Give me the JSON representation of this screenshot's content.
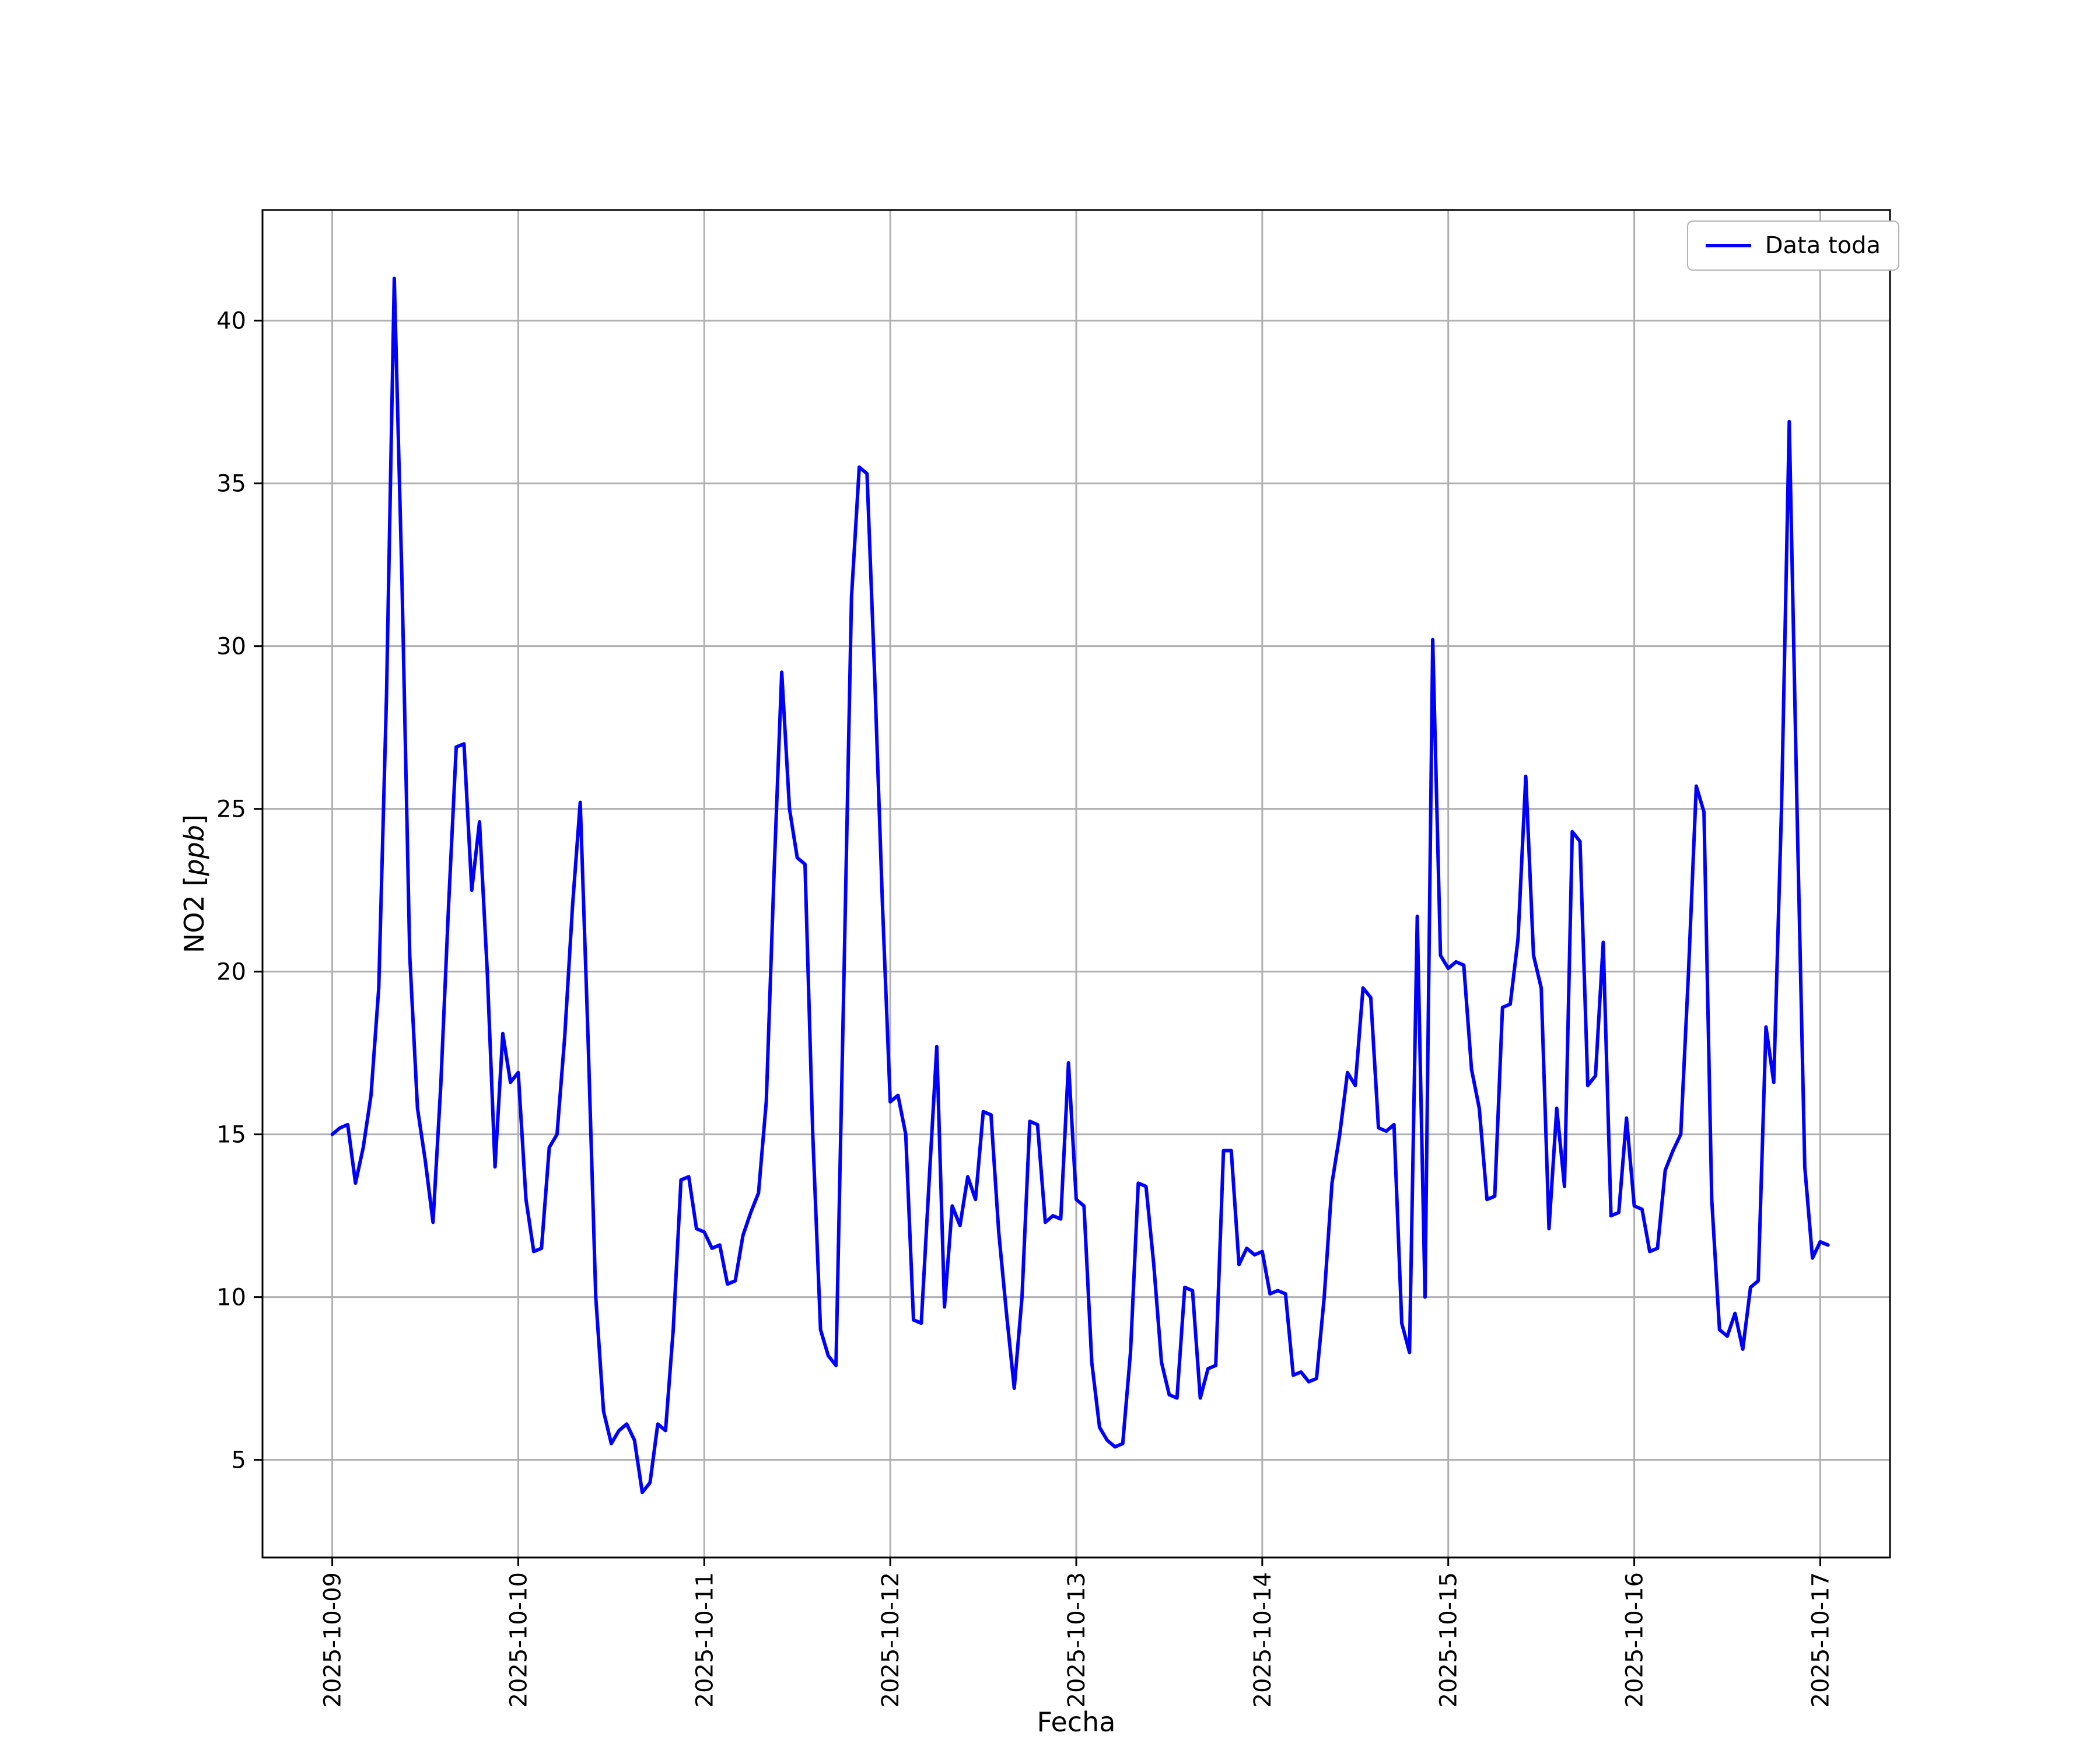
{
  "chart_data": {
    "type": "line",
    "title": "",
    "xlabel": "Fecha",
    "ylabel": "NO2 [ppb]",
    "ylabel_parts": {
      "pre": "NO2 [",
      "italic": "ppb",
      "post": "]"
    },
    "grid": true,
    "legend": {
      "position": "upper right"
    },
    "x_tick_labels": [
      "2025-10-09",
      "2025-10-10",
      "2025-10-11",
      "2025-10-12",
      "2025-10-13",
      "2025-10-14",
      "2025-10-15",
      "2025-10-16",
      "2025-10-17"
    ],
    "x_tick_hours": [
      0,
      24,
      48,
      72,
      96,
      120,
      144,
      168,
      192
    ],
    "x_tick_rotation_deg": 90,
    "xlim_hours": [
      -9,
      201
    ],
    "y_ticks": [
      5,
      10,
      15,
      20,
      25,
      30,
      35,
      40
    ],
    "ylim": [
      2.0,
      43.4
    ],
    "x_unit": "hours since 2025-10-09 00:00",
    "series": [
      {
        "name": "Data toda",
        "color": "#0000ff",
        "x_start_hour": 0,
        "x_step_hours": 1,
        "values": [
          15.0,
          15.2,
          15.3,
          13.5,
          14.6,
          16.2,
          19.5,
          28.5,
          41.3,
          32.0,
          20.5,
          15.8,
          14.2,
          12.3,
          16.5,
          22.0,
          26.9,
          27.0,
          22.5,
          24.6,
          20.0,
          14.0,
          18.1,
          16.6,
          16.9,
          13.0,
          11.4,
          11.5,
          14.6,
          15.0,
          18.0,
          22.0,
          25.2,
          18.0,
          10.0,
          6.5,
          5.5,
          5.9,
          6.1,
          5.6,
          4.0,
          4.3,
          6.1,
          5.9,
          9.0,
          13.6,
          13.7,
          12.1,
          12.0,
          11.5,
          11.6,
          10.4,
          10.5,
          11.9,
          12.6,
          13.2,
          16.0,
          23.0,
          29.2,
          25.0,
          23.5,
          23.3,
          15.0,
          9.0,
          8.2,
          7.9,
          19.5,
          31.5,
          35.5,
          35.3,
          29.0,
          22.0,
          16.0,
          16.2,
          15.0,
          9.3,
          9.2,
          13.5,
          17.7,
          9.7,
          12.8,
          12.2,
          13.7,
          13.0,
          15.7,
          15.6,
          12.0,
          9.5,
          7.2,
          10.0,
          15.4,
          15.3,
          12.3,
          12.5,
          12.4,
          17.2,
          13.0,
          12.8,
          8.0,
          6.0,
          5.6,
          5.4,
          5.5,
          8.3,
          13.5,
          13.4,
          11.0,
          8.0,
          7.0,
          6.9,
          10.3,
          10.2,
          6.9,
          7.8,
          7.9,
          14.5,
          14.5,
          11.0,
          11.5,
          11.3,
          11.4,
          10.1,
          10.2,
          10.1,
          7.6,
          7.7,
          7.4,
          7.5,
          10.0,
          13.5,
          15.0,
          16.9,
          16.5,
          19.5,
          19.2,
          15.2,
          15.1,
          15.3,
          9.2,
          8.3,
          21.7,
          10.0,
          30.2,
          20.5,
          20.1,
          20.3,
          20.2,
          17.0,
          15.8,
          13.0,
          13.1,
          18.9,
          19.0,
          21.0,
          26.0,
          20.5,
          19.5,
          12.1,
          15.8,
          13.4,
          24.3,
          24.0,
          16.5,
          16.8,
          20.9,
          12.5,
          12.6,
          15.5,
          12.8,
          12.7,
          11.4,
          11.5,
          13.9,
          14.5,
          15.0,
          20.0,
          25.7,
          24.9,
          13.0,
          9.0,
          8.8,
          9.5,
          8.4,
          10.3,
          10.5,
          18.3,
          16.6,
          25.0,
          36.9,
          25.0,
          14.0,
          11.2,
          11.7,
          11.6
        ]
      }
    ],
    "colors": {
      "line": "#0000ff",
      "grid": "#b0b0b0",
      "axes": "#000000",
      "background": "#ffffff"
    }
  }
}
